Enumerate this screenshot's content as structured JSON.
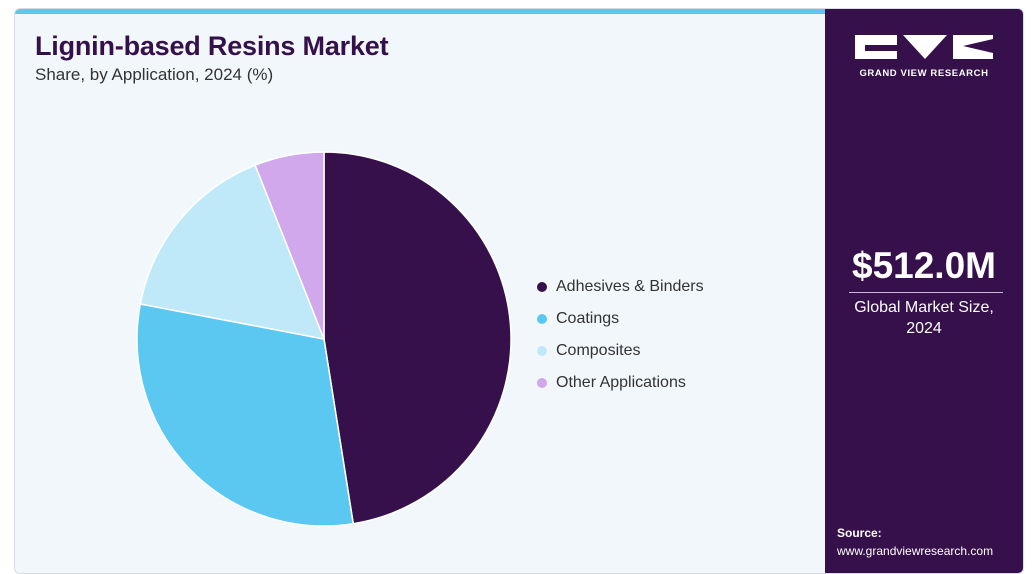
{
  "header": {
    "title": "Lignin-based Resins Market",
    "subtitle": "Share, by Application, 2024 (%)"
  },
  "chart_data": {
    "type": "pie",
    "title": "Lignin-based Resins Market",
    "subtitle": "Share, by Application, 2024 (%)",
    "categories": [
      "Adhesives & Binders",
      "Coatings",
      "Composites",
      "Other Applications"
    ],
    "values": [
      47.5,
      30.5,
      16.0,
      6.0
    ],
    "colors": [
      "#36104a",
      "#5bc8f2",
      "#bfe9f9",
      "#d2a8ec"
    ],
    "start_angle_deg": 0,
    "direction": "clockwise",
    "legend_position": "right"
  },
  "sidebar": {
    "logo_text": "GRAND VIEW RESEARCH",
    "market_value": "$512.0M",
    "market_caption_line1": "Global Market Size,",
    "market_caption_line2": "2024",
    "source_label": "Source:",
    "source_url": "www.grandviewresearch.com"
  }
}
